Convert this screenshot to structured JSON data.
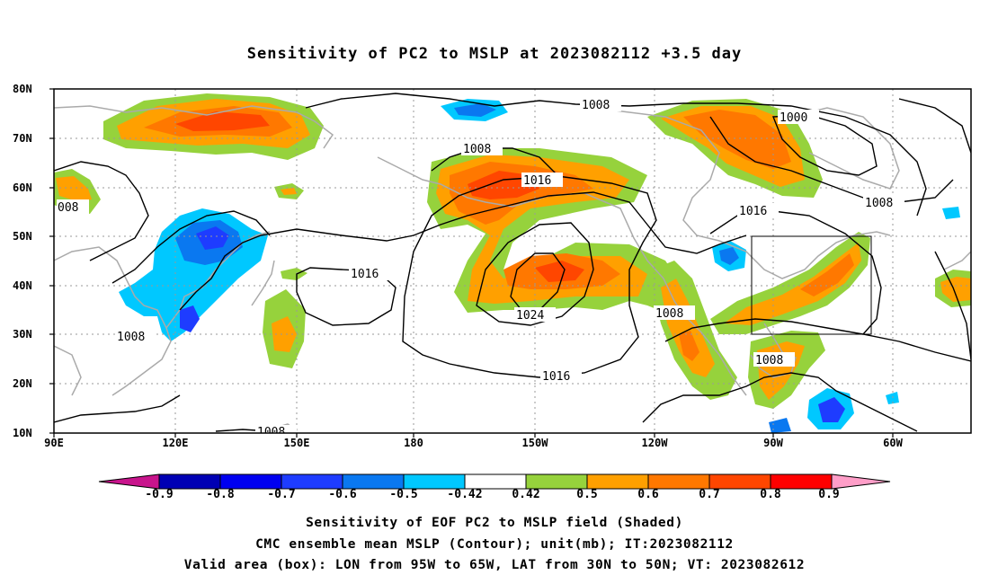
{
  "title": "Sensitivity of PC2 to MSLP at 2023082112 +3.5 day",
  "map": {
    "lat_ticks": [
      "80N",
      "70N",
      "60N",
      "50N",
      "40N",
      "30N",
      "20N",
      "10N"
    ],
    "lon_ticks": [
      "90E",
      "120E",
      "150E",
      "180",
      "150W",
      "120W",
      "90W",
      "60W"
    ],
    "lon_range": [
      90,
      310
    ],
    "lat_range": [
      10,
      80
    ],
    "grid": "dotted",
    "valid_box": {
      "lon": [
        265,
        295
      ],
      "lat": [
        30,
        50
      ]
    },
    "contour_labels": [
      "1008",
      "1000",
      "1008",
      "1008",
      "1016",
      "1016",
      "008",
      "1016",
      "1024",
      "1016",
      "1008",
      "1008",
      "1008",
      "1008"
    ]
  },
  "colorbar": {
    "labels": [
      "-0.9",
      "-0.8",
      "-0.7",
      "-0.6",
      "-0.5",
      "-0.42",
      "0.42",
      "0.5",
      "0.6",
      "0.7",
      "0.8",
      "0.9"
    ],
    "colors": [
      "#0000b4",
      "#0000f0",
      "#1e3cff",
      "#0a78f0",
      "#00c8ff",
      "#ffffff",
      "#96d23c",
      "#ffa000",
      "#ff7800",
      "#ff4600",
      "#ff0000"
    ],
    "under_color": "#c8148c",
    "over_color": "#ff9ec8"
  },
  "captions": [
    "Sensitivity of EOF PC2 to MSLP field (Shaded)",
    "CMC ensemble mean MSLP (Contour); unit(mb); IT:2023082112",
    "Valid area (box): LON from 95W to 65W, LAT from 30N to 50N; VT: 2023082612"
  ]
}
